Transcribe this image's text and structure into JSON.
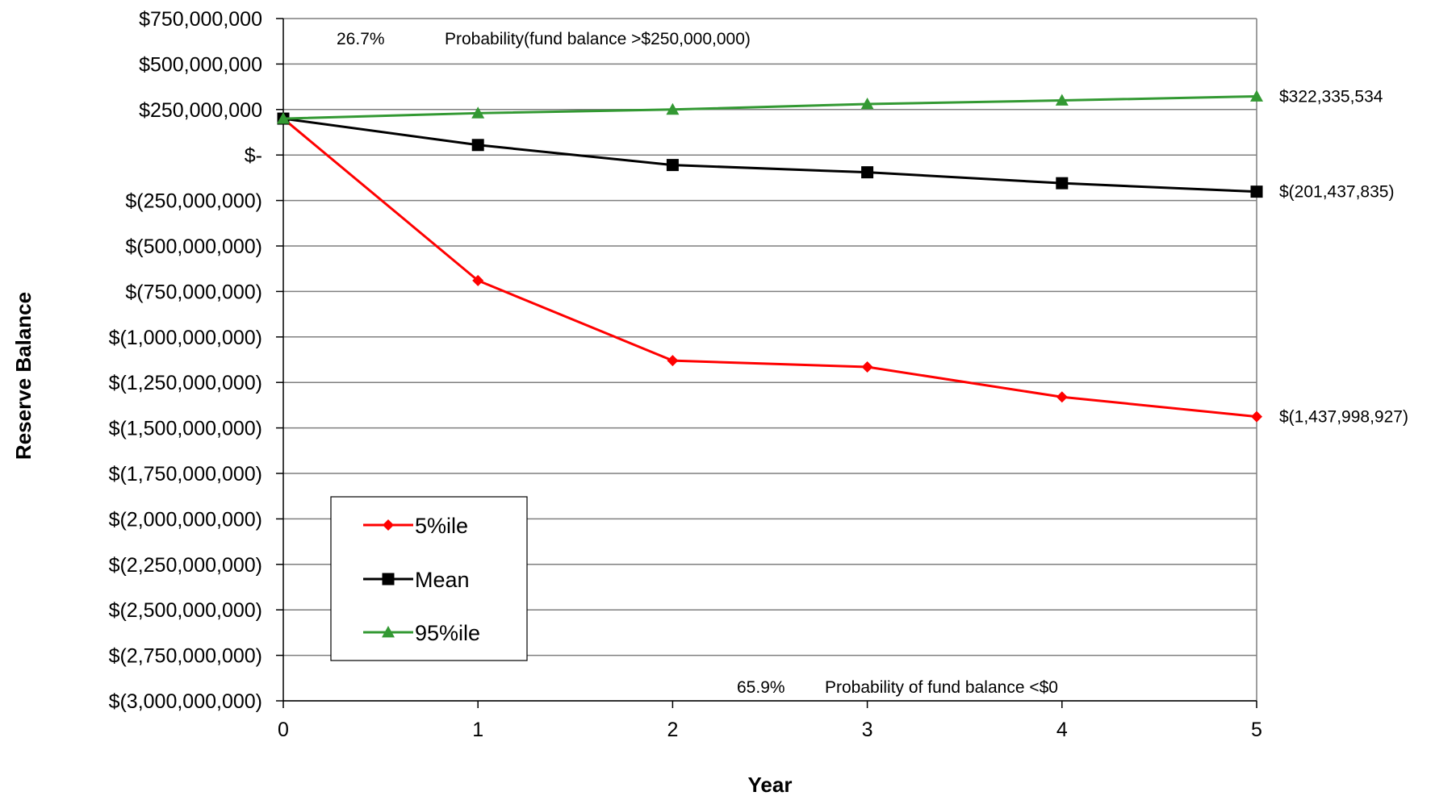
{
  "chart_data": {
    "type": "line",
    "xlabel": "Year",
    "ylabel": "Reserve  Balance",
    "x": [
      0,
      1,
      2,
      3,
      4,
      5
    ],
    "x_tick_labels": [
      "0",
      "1",
      "2",
      "3",
      "4",
      "5"
    ],
    "xlim": [
      0,
      5
    ],
    "ylim": [
      -3000000000,
      750000000
    ],
    "y_ticks": [
      750000000,
      500000000,
      250000000,
      0,
      -250000000,
      -500000000,
      -750000000,
      -1000000000,
      -1250000000,
      -1500000000,
      -1750000000,
      -2000000000,
      -2250000000,
      -2500000000,
      -2750000000,
      -3000000000
    ],
    "y_tick_labels": [
      "$750,000,000",
      "$500,000,000",
      "$250,000,000",
      "$-",
      "$(250,000,000)",
      "$(500,000,000)",
      "$(750,000,000)",
      "$(1,000,000,000)",
      "$(1,250,000,000)",
      "$(1,500,000,000)",
      "$(1,750,000,000)",
      "$(2,000,000,000)",
      "$(2,250,000,000)",
      "$(2,500,000,000)",
      "$(2,750,000,000)",
      "$(3,000,000,000)"
    ],
    "grid": "horizontal",
    "legend_position": "bottom-left",
    "series": [
      {
        "name": "5%ile",
        "color": "#ff0000",
        "marker": "diamond",
        "values": [
          200000000,
          -690000000,
          -1130000000,
          -1165000000,
          -1330000000,
          -1437998927
        ],
        "end_label": "$(1,437,998,927)"
      },
      {
        "name": "Mean",
        "color": "#000000",
        "marker": "square",
        "values": [
          200000000,
          55000000,
          -55000000,
          -95000000,
          -155000000,
          -201437835
        ],
        "end_label": "$(201,437,835)"
      },
      {
        "name": "95%ile",
        "color": "#339933",
        "marker": "triangle",
        "values": [
          200000000,
          230000000,
          250000000,
          280000000,
          300000000,
          322335534
        ],
        "end_label": "$322,335,534"
      }
    ],
    "annotations": [
      {
        "pct": "26.7%",
        "text": "Probability(fund balance >$250,000,000)"
      },
      {
        "pct": "65.9%",
        "text": "Probability of fund balance <$0"
      }
    ]
  }
}
